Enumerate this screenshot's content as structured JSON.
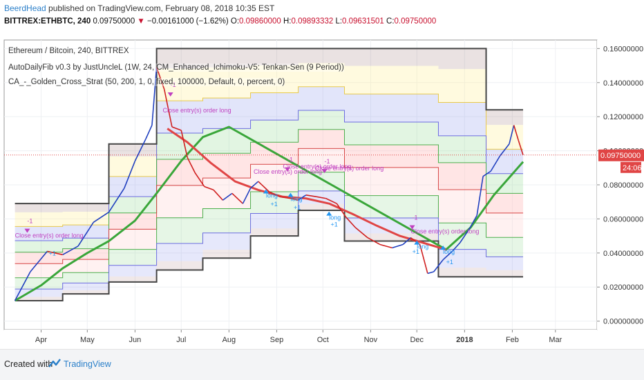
{
  "header": {
    "author": "BeerdHead",
    "published_text": " published on TradingView.com, February 08, 2018 10:35 EST"
  },
  "ohlc": {
    "symbol": "BITTREX:ETHBTC, 240",
    "last": "0.09750000",
    "arrow": "▼",
    "change": "−0.00161000 (−1.62%)",
    "o_label": "O:",
    "o": "0.09860000",
    "h_label": "H:",
    "h": "0.09893332",
    "l_label": "L:",
    "l": "0.09631501",
    "c_label": "C:",
    "c": "0.09750000"
  },
  "legend": {
    "line1": "Ethereum / Bitcoin, 240, BITTREX",
    "line2": "AutoDailyFib v0.3 by JustUncleL (1W, 24, CM_Enhanced_Ichimoku-V5: Tenkan-Sen (9 Period))",
    "line3": "CA_-_Golden_Cross_Strat (50, 200, 1, 0, fixed, 100000, Default, 0, percent, 0)"
  },
  "footer": {
    "created_with": "Created with",
    "brand": "TradingView"
  },
  "colors": {
    "price_up": "#1f3fbf",
    "price_down": "#d01f1f",
    "sma_fast": "#e04545",
    "sma_slow": "#3aa63a",
    "price_tag": "#e04545",
    "order_label": "#c040c0",
    "entry_marker": "#2196f3"
  },
  "chart_data": {
    "type": "line",
    "title": "Ethereum / Bitcoin, 240, BITTREX",
    "xlabel": "",
    "ylabel": "",
    "ylim": [
      -0.005,
      0.165
    ],
    "y_ticks": [
      "0.16000000",
      "0.14000000",
      "0.12000000",
      "0.10000000",
      "0.08000000",
      "0.06000000",
      "0.04000000",
      "0.02000000",
      "0.00000000"
    ],
    "y_tick_values": [
      0.16,
      0.14,
      0.12,
      0.1,
      0.08,
      0.06,
      0.04,
      0.02,
      0.0
    ],
    "x_ticks": [
      "Apr",
      "May",
      "Jun",
      "Jul",
      "Aug",
      "Sep",
      "Oct",
      "Nov",
      "Dec",
      "2018",
      "Feb",
      "Mar"
    ],
    "last_price_label": "0.09750000",
    "countdown_label": "24:06",
    "last_price": 0.0975,
    "series": [
      {
        "name": "ETHBTC",
        "x": [
          "2017-03-15",
          "2017-03-25",
          "2017-04-05",
          "2017-04-15",
          "2017-04-25",
          "2017-05-05",
          "2017-05-15",
          "2017-05-25",
          "2017-06-01",
          "2017-06-08",
          "2017-06-12",
          "2017-06-15",
          "2017-06-20",
          "2017-06-25",
          "2017-07-01",
          "2017-07-05",
          "2017-07-10",
          "2017-07-16",
          "2017-07-22",
          "2017-07-28",
          "2017-08-03",
          "2017-08-10",
          "2017-08-15",
          "2017-08-20",
          "2017-08-27",
          "2017-09-03",
          "2017-09-10",
          "2017-09-15",
          "2017-09-20",
          "2017-09-27",
          "2017-10-03",
          "2017-10-10",
          "2017-10-16",
          "2017-10-22",
          "2017-10-30",
          "2017-11-07",
          "2017-11-15",
          "2017-11-22",
          "2017-11-27",
          "2017-12-03",
          "2017-12-08",
          "2017-12-12",
          "2017-12-18",
          "2017-12-24",
          "2017-12-29",
          "2018-01-04",
          "2018-01-09",
          "2018-01-13",
          "2018-01-18",
          "2018-01-24",
          "2018-01-30",
          "2018-02-02",
          "2018-02-05",
          "2018-02-08"
        ],
        "values": [
          0.012,
          0.029,
          0.041,
          0.039,
          0.044,
          0.058,
          0.064,
          0.078,
          0.094,
          0.107,
          0.115,
          0.149,
          0.136,
          0.114,
          0.112,
          0.096,
          0.087,
          0.079,
          0.077,
          0.071,
          0.075,
          0.069,
          0.078,
          0.082,
          0.076,
          0.073,
          0.072,
          0.071,
          0.074,
          0.073,
          0.072,
          0.069,
          0.061,
          0.055,
          0.049,
          0.045,
          0.043,
          0.045,
          0.049,
          0.045,
          0.028,
          0.029,
          0.036,
          0.041,
          0.046,
          0.054,
          0.062,
          0.085,
          0.088,
          0.097,
          0.104,
          0.115,
          0.106,
          0.0975
        ]
      },
      {
        "name": "SMA 50",
        "x": [
          "2017-06-22",
          "2017-07-05",
          "2017-07-20",
          "2017-08-05",
          "2017-08-20",
          "2017-09-05",
          "2017-09-20",
          "2017-10-05",
          "2017-10-20",
          "2017-11-05",
          "2017-11-20",
          "2017-12-05",
          "2017-12-20"
        ],
        "values": [
          0.113,
          0.105,
          0.093,
          0.082,
          0.077,
          0.073,
          0.072,
          0.069,
          0.063,
          0.056,
          0.05,
          0.046,
          0.042
        ]
      },
      {
        "name": "SMA 200",
        "x": [
          "2017-03-15",
          "2017-04-01",
          "2017-04-15",
          "2017-05-01",
          "2017-05-15",
          "2017-06-01",
          "2017-06-15",
          "2017-07-01",
          "2017-07-15",
          "2017-08-01",
          "2017-12-20",
          "2018-01-05",
          "2018-01-20",
          "2018-02-08"
        ],
        "values": [
          0.012,
          0.021,
          0.031,
          0.04,
          0.047,
          0.059,
          0.075,
          0.094,
          0.108,
          0.114,
          0.042,
          0.055,
          0.074,
          0.0935
        ]
      }
    ],
    "fib_levels": {
      "x": [
        "2017-03-15",
        "2017-04-15",
        "2017-05-15",
        "2017-06-15",
        "2017-07-15",
        "2017-08-15",
        "2017-09-15",
        "2017-10-15",
        "2017-11-15",
        "2017-12-15",
        "2018-01-15",
        "2018-02-08"
      ],
      "high": [
        0.069,
        0.069,
        0.104,
        0.16,
        0.16,
        0.16,
        0.16,
        0.16,
        0.16,
        0.16,
        0.124,
        0.124
      ],
      "low": [
        0.012,
        0.016,
        0.023,
        0.03,
        0.037,
        0.05,
        0.065,
        0.047,
        0.047,
        0.026,
        0.026,
        0.026
      ]
    },
    "annotations": [
      "Close entry(s) order long",
      "long",
      "+1",
      "-1"
    ],
    "trade_labels": [
      {
        "text": "Close entry(s) order long",
        "x": "2017-06-19",
        "y": 0.1225
      },
      {
        "text": "-1",
        "x": "2017-06-24",
        "y": 0.1375
      },
      {
        "text": "Close entry(s) order long",
        "x": "2017-03-15",
        "y": 0.049
      },
      {
        "text": "-1",
        "x": "2017-03-23",
        "y": 0.0575
      },
      {
        "text": "+1",
        "x": "2017-04-06",
        "y": 0.0385
      },
      {
        "text": "Close entry(s) order long",
        "x": "2017-08-17",
        "y": 0.0865
      },
      {
        "text": "Close entry(s) order long",
        "x": "2017-09-05",
        "y": 0.0895
      },
      {
        "text": "-1",
        "x": "2017-09-08",
        "y": 0.0935
      },
      {
        "text": "long",
        "x": "2017-08-25",
        "y": 0.0725
      },
      {
        "text": "+1",
        "x": "2017-08-28",
        "y": 0.0675
      },
      {
        "text": "long",
        "x": "2017-09-10",
        "y": 0.0705
      },
      {
        "text": "+1",
        "x": "2017-09-12",
        "y": 0.0655
      },
      {
        "text": "Close entry(s) order long",
        "x": "2017-09-26",
        "y": 0.0885
      },
      {
        "text": "-1",
        "x": "2017-10-02",
        "y": 0.0925
      },
      {
        "text": "long",
        "x": "2017-10-05",
        "y": 0.0595
      },
      {
        "text": "+1",
        "x": "2017-10-06",
        "y": 0.0555
      },
      {
        "text": "Close entry(s) order long",
        "x": "2017-11-27",
        "y": 0.0515
      },
      {
        "text": "-1",
        "x": "2017-11-28",
        "y": 0.0595
      },
      {
        "text": "long",
        "x": "2017-12-01",
        "y": 0.0425
      },
      {
        "text": "+1",
        "x": "2017-11-28",
        "y": 0.0395
      },
      {
        "text": "long",
        "x": "2017-12-18",
        "y": 0.0395
      },
      {
        "text": "+1",
        "x": "2017-12-20",
        "y": 0.0335
      }
    ],
    "grid": true,
    "legend_position": "top-left"
  }
}
